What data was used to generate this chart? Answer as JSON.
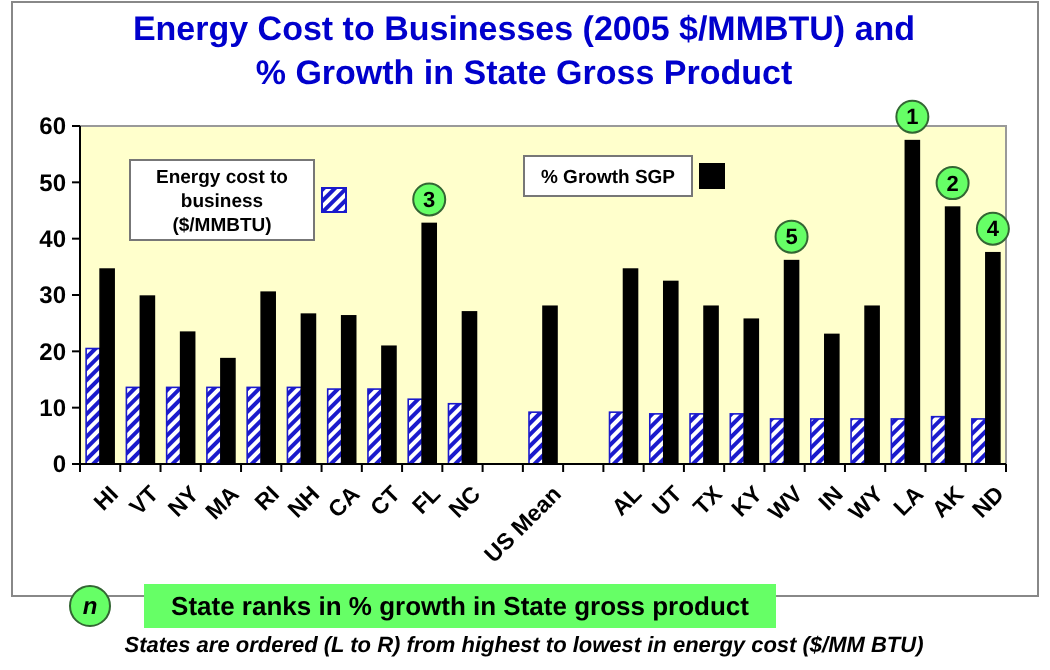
{
  "chart_data": {
    "type": "bar",
    "title": "Energy Cost to Businesses (2005 $/MMBTU) and\n% Growth  in State Gross Product",
    "categories": [
      "HI",
      "VT",
      "NY",
      "MA",
      "RI",
      "NH",
      "CA",
      "CT",
      "FL",
      "NC",
      null,
      "US Mean",
      null,
      "AL",
      "UT",
      "TX",
      "KY",
      "WV",
      "IN",
      "WY",
      "LA",
      "AK",
      "ND"
    ],
    "series": [
      {
        "name": "Energy cost to business ($/MMBTU)",
        "color": "#1a1acc",
        "values": [
          20.5,
          13.6,
          13.6,
          13.6,
          13.6,
          13.6,
          13.3,
          13.3,
          11.5,
          10.7,
          null,
          9.2,
          null,
          9.2,
          8.9,
          8.9,
          8.9,
          8.0,
          8.0,
          8.0,
          8.0,
          8.4,
          8.0
        ]
      },
      {
        "name": "% Growth SGP",
        "color": "#000000",
        "values": [
          34.6,
          29.8,
          23.4,
          18.7,
          30.5,
          26.6,
          26.3,
          20.9,
          42.7,
          27.0,
          null,
          28.0,
          null,
          34.6,
          32.4,
          28.0,
          25.7,
          36.1,
          23.0,
          28.0,
          57.4,
          45.6,
          37.5
        ]
      }
    ],
    "ylim": [
      0,
      60
    ],
    "yticks": [
      0,
      10,
      20,
      30,
      40,
      50,
      60
    ],
    "grid": false,
    "legend": "top",
    "annotations": [
      {
        "text": "1",
        "x": "LA",
        "y": 57.4
      },
      {
        "text": "2",
        "x": "AK",
        "y": 45.6
      },
      {
        "text": "3",
        "x": "FL",
        "y": 42.7
      },
      {
        "text": "4",
        "x": "ND",
        "y": 37.5
      },
      {
        "text": "5",
        "x": "WV",
        "y": 36.1
      },
      "n",
      "State ranks in % growth in State gross product",
      "States are ordered (L to R) from highest to lowest in energy cost ($/MM BTU)"
    ]
  }
}
